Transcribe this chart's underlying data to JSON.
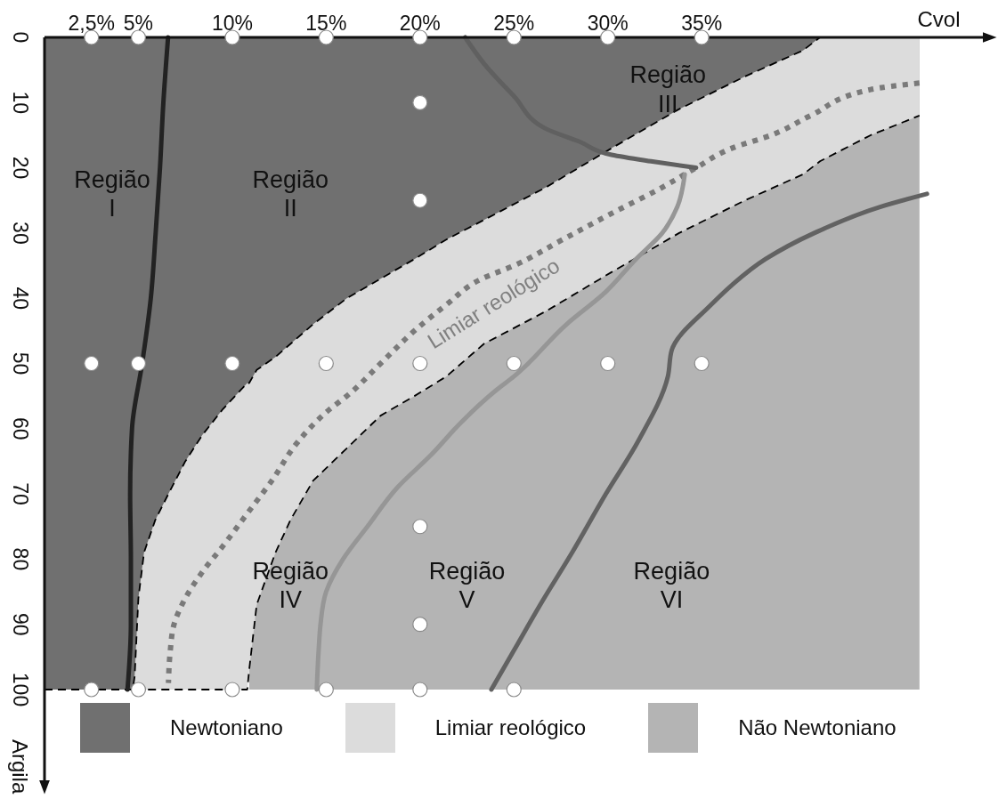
{
  "chart_data": {
    "type": "area",
    "xlabel": "Cvol",
    "ylabel": "Argila",
    "legend": "bottom",
    "x": [
      0,
      4.7,
      4.8,
      5.0,
      5.3,
      5.9,
      6.6,
      7.5,
      8.4,
      9.5,
      10.8,
      10.9,
      11.3,
      11.8,
      12.3,
      13.1,
      14.3,
      16.1,
      17.9,
      19.7,
      21.4,
      23.4,
      26.7,
      30.2,
      33.8,
      37.3,
      40.4,
      41.3,
      44.0,
      46.6
    ],
    "series": [
      {
        "name": "Newtoniano",
        "color": "#707070",
        "line_style": "dashed",
        "values": [
          100,
          100,
          98,
          86,
          79,
          74,
          70,
          65,
          61,
          57,
          53,
          53,
          51,
          50,
          49,
          47,
          44,
          40,
          37,
          34,
          31,
          28,
          23,
          17,
          11,
          6,
          2,
          0,
          null,
          null
        ]
      },
      {
        "name": "Limiar reológico",
        "color": "#dcdcdc",
        "line_style": "dashed",
        "values": [
          null,
          null,
          100,
          100,
          100,
          100,
          100,
          100,
          100,
          100,
          100,
          97,
          87,
          83,
          79,
          74,
          68,
          63,
          58,
          55,
          52,
          47,
          42,
          36,
          30,
          25,
          21,
          19,
          15,
          12
        ]
      },
      {
        "name": "Não Newtoniano",
        "color": "#b4b4b4",
        "values": [
          null,
          null,
          null,
          null,
          null,
          null,
          null,
          null,
          null,
          null,
          null,
          100,
          100,
          100,
          100,
          100,
          100,
          100,
          100,
          100,
          100,
          100,
          100,
          100,
          100,
          100,
          100,
          100,
          100,
          100
        ]
      },
      {
        "type": "line",
        "color": "#7a7a7a",
        "line_style": "dotted",
        "x": [
          46.6,
          44.0,
          40.8,
          38.7,
          36.6,
          34.7,
          32.9,
          30.2,
          27.6,
          25.0,
          23.3,
          21.4,
          19.7,
          17.9,
          16.1,
          15.2,
          13.5,
          12.1,
          10.8,
          9.5,
          8.4,
          7.5,
          6.9,
          6.7,
          6.6
        ],
        "values": [
          7,
          8,
          12,
          15,
          17,
          20,
          23,
          27,
          31,
          35,
          37,
          41,
          45,
          50,
          55,
          57,
          62,
          68,
          73,
          78,
          82,
          86,
          90,
          94,
          99
        ]
      },
      {
        "type": "line",
        "color": "#222222",
        "x": [
          6.58,
          6.33,
          6.15,
          5.92,
          5.66,
          5.2,
          4.66,
          4.56,
          4.6,
          4.6,
          4.42
        ],
        "values": [
          0,
          10,
          20,
          30,
          40,
          50,
          60,
          70,
          80,
          90,
          100
        ]
      },
      {
        "type": "line",
        "color": "#606060",
        "x": [
          22.4,
          23.4,
          25.0,
          26.7,
          28.5,
          30.2,
          32.3,
          34.7
        ],
        "values": [
          0,
          4,
          9,
          14,
          16,
          18,
          19,
          20
        ]
      },
      {
        "type": "line",
        "color": "#969696",
        "x": [
          34.1,
          33.7,
          32.9,
          31.5,
          29.9,
          27.8,
          25.0,
          24.1,
          22.2,
          20.6,
          18.8,
          17.2,
          15.9,
          15.0,
          14.7,
          14.6,
          14.5
        ],
        "values": [
          21,
          26,
          30,
          34,
          39,
          44,
          52,
          54,
          59,
          64,
          69,
          75,
          80,
          85,
          90,
          94,
          100
        ]
      },
      {
        "type": "line",
        "color": "#626262",
        "x": [
          47.0,
          44.5,
          41.0,
          38.4,
          36.6,
          35.5,
          33.4,
          33.2,
          31.6,
          29.9,
          28.1,
          26.4,
          25.0,
          23.8
        ],
        "values": [
          24,
          26,
          30,
          34,
          38,
          41,
          48,
          52,
          62,
          70,
          79,
          87,
          94,
          100
        ]
      },
      {
        "type": "scatter",
        "color": "#ffffff",
        "marker": "circle",
        "x": [
          2.5,
          5,
          10,
          15,
          20,
          25,
          30,
          35,
          20,
          20,
          2.5,
          5,
          10,
          15,
          20,
          25,
          30,
          35,
          20,
          20,
          2.5,
          5,
          10,
          15,
          20,
          25
        ],
        "values": [
          0,
          0,
          0,
          0,
          0,
          0,
          0,
          0,
          10,
          25,
          50,
          50,
          50,
          50,
          50,
          50,
          50,
          50,
          75,
          90,
          100,
          100,
          100,
          100,
          100,
          100
        ]
      }
    ],
    "xlim": [
      0,
      50
    ],
    "xticks": [
      {
        "value": 2.5,
        "label": "2,5%"
      },
      {
        "value": 5,
        "label": "5%"
      },
      {
        "value": 10,
        "label": "10%"
      },
      {
        "value": 15,
        "label": "15%"
      },
      {
        "value": 20,
        "label": "20%"
      },
      {
        "value": 25,
        "label": "25%"
      },
      {
        "value": 30,
        "label": "30%"
      },
      {
        "value": 35,
        "label": "35%"
      }
    ],
    "ylim": [
      114,
      0
    ],
    "yticks": [
      0,
      10,
      20,
      30,
      40,
      50,
      60,
      70,
      80,
      90,
      100
    ],
    "annotations": [
      "Região I",
      "Região II",
      "Região III",
      "Região IV",
      "Região V",
      "Região VI",
      "Limiar reológico"
    ]
  }
}
